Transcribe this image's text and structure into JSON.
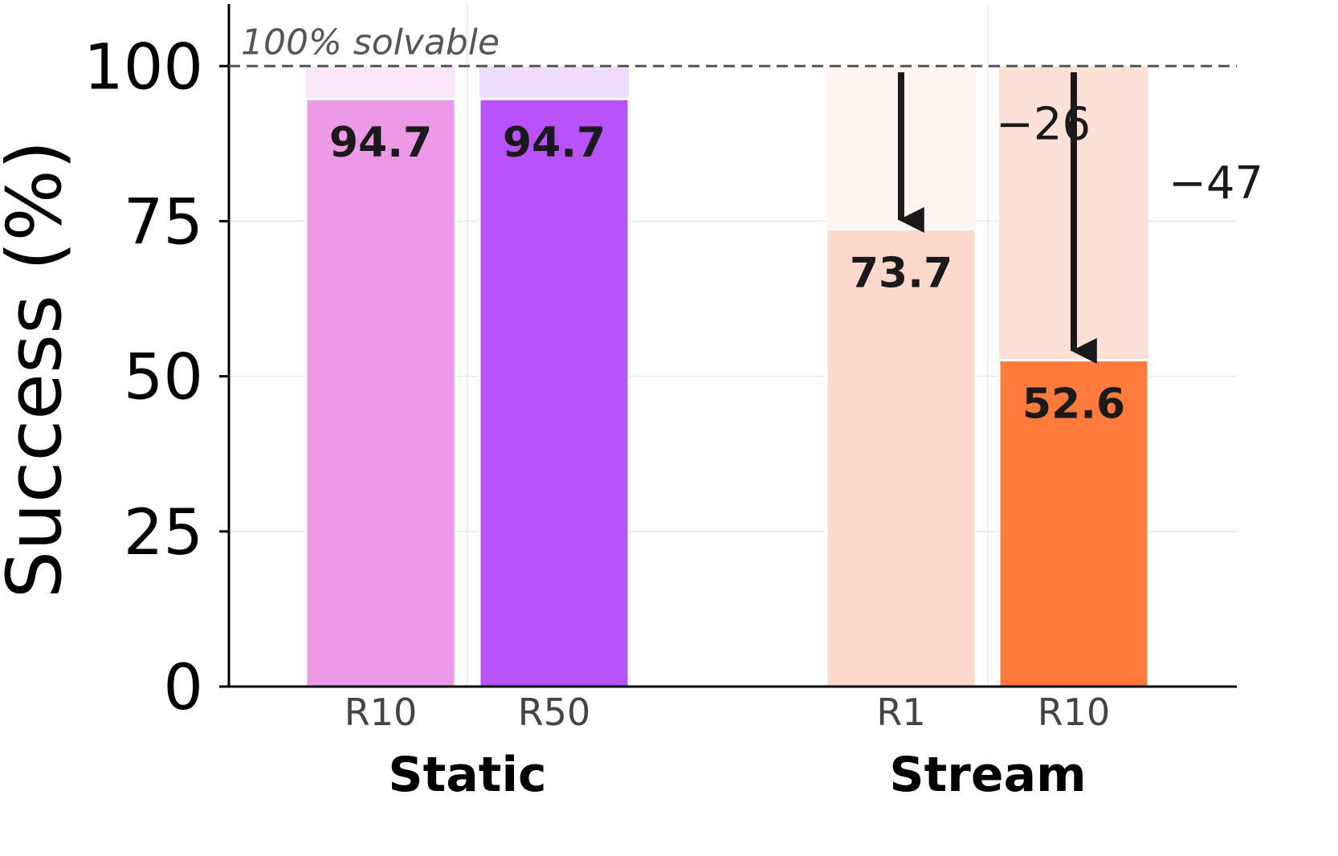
{
  "chart_data": {
    "type": "bar",
    "title": "",
    "ylabel": "Success (%)",
    "ylim": [
      0,
      110
    ],
    "yticks": [
      "0",
      "25",
      "50",
      "75",
      "100"
    ],
    "grid": true,
    "reference_line": {
      "value": 100,
      "label": "100% solvable"
    },
    "groups": [
      {
        "name": "Static",
        "bars": [
          {
            "category": "R10",
            "value": 94.7,
            "label": "94.7",
            "color": "#ec9ae8",
            "ghost_color": "#fae6f9"
          },
          {
            "category": "R50",
            "value": 94.7,
            "label": "94.7",
            "color": "#b853fb",
            "ghost_color": "#f0dcfe"
          }
        ]
      },
      {
        "name": "Stream",
        "bars": [
          {
            "category": "R1",
            "value": 73.7,
            "label": "73.7",
            "color": "#fcd9cb",
            "ghost_color": "#fff4f0",
            "delta_label": "−26"
          },
          {
            "category": "R10",
            "value": 52.6,
            "label": "52.6",
            "color": "#ff7a3d",
            "ghost_color": "#fde1d6",
            "delta_label": "−47"
          }
        ]
      }
    ]
  }
}
